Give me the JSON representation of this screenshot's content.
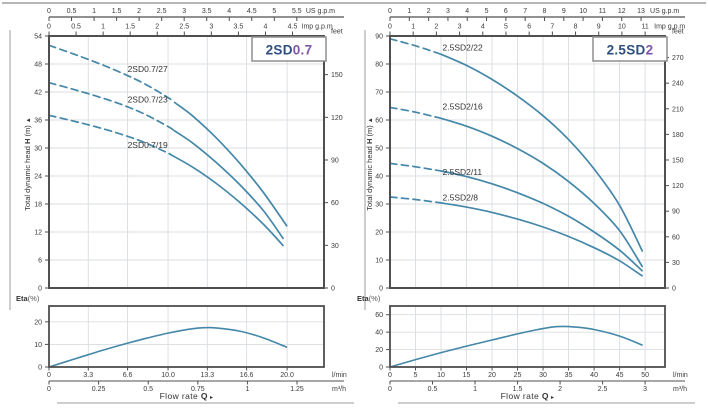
{
  "page": {
    "background": "#ffffff"
  },
  "shared": {
    "head_axis_label": {
      "prefix": "Total dynamic head ",
      "h": "H",
      "unit": " (m) ",
      "arrow": "▲"
    },
    "eta_axis_label": {
      "bold": "Eta",
      "unit": "(%)"
    },
    "flow_axis_label": {
      "text": "Flow  rate  ",
      "q": "Q",
      "arrow": " ▸"
    },
    "colors": {
      "curve": "#4487a9",
      "grid": "#d9dde1",
      "frame": "#4f4f4f",
      "text": "#333333",
      "axis_text": "#3a3a3a",
      "title_prefix": "#2f4f80",
      "title_suffix": "#7e57ab",
      "box_border": "#8f8f8f",
      "page_line": "#9e9e9e"
    }
  },
  "chart_data": [
    {
      "type": "line",
      "title": {
        "prefix": "2SD",
        "suffix": "0.7"
      },
      "x_max_lpm": 23.1,
      "head_max_m": 54,
      "head_ticks": [
        0,
        6,
        12,
        18,
        24,
        30,
        36,
        42,
        48,
        54
      ],
      "feet_axis": {
        "unit": "feet",
        "feet_per_m": 3.2808,
        "ticks": [
          0,
          30,
          60,
          90,
          120,
          150
        ]
      },
      "us_axis": {
        "unit": "US g.p.m",
        "lpm_per_unit": 3.785,
        "values": [
          0,
          0.5,
          1,
          1.5,
          2,
          2.5,
          3,
          3.5,
          4,
          4.5,
          5,
          5.5
        ],
        "labels": [
          "0",
          "0.5",
          "1",
          "1.5",
          "2",
          "2.5",
          "3",
          "3.5",
          "4",
          "4.5",
          "5",
          "5.5"
        ]
      },
      "imp_axis": {
        "unit": "Imp g.p.m",
        "lpm_per_unit": 4.546,
        "values": [
          0,
          0.5,
          1,
          1.5,
          2,
          2.5,
          3,
          3.5,
          4,
          4.5
        ],
        "labels": [
          "0",
          "0.5",
          "1",
          "1.5",
          "2",
          "2.5",
          "3",
          "3.5",
          "4",
          "4.5"
        ]
      },
      "lpm_axis": {
        "unit": "l/min",
        "values": [
          0,
          3.3,
          6.6,
          10,
          13.3,
          16.6,
          20
        ],
        "labels": [
          "0",
          "3.3",
          "6.6",
          "10.0",
          "13.3",
          "16.6",
          "20.0"
        ]
      },
      "m3h_axis": {
        "unit": "m³/h",
        "lpm_per_unit": 16.667,
        "values": [
          0,
          0.25,
          0.5,
          0.75,
          1,
          1.25
        ],
        "labels": [
          "0",
          "0.25",
          "0.5",
          "0.75",
          "1",
          "1.25"
        ]
      },
      "curves": [
        {
          "name": "2SD0.7/27",
          "dash_until_lpm": 10.5,
          "label_at": [
            6.6,
            46.3
          ],
          "points": [
            [
              0,
              52
            ],
            [
              2,
              50.2
            ],
            [
              4,
              48.3
            ],
            [
              6,
              46.2
            ],
            [
              8,
              43.8
            ],
            [
              10,
              40.8
            ],
            [
              12,
              37
            ],
            [
              14,
              32.3
            ],
            [
              16,
              26.8
            ],
            [
              18,
              20.5
            ],
            [
              20,
              13.2
            ]
          ]
        },
        {
          "name": "2SD0.7/23",
          "dash_until_lpm": 10.5,
          "label_at": [
            6.6,
            39.7
          ],
          "points": [
            [
              0,
              44
            ],
            [
              2,
              42.6
            ],
            [
              4,
              41.1
            ],
            [
              6,
              39.4
            ],
            [
              8,
              37.3
            ],
            [
              10,
              34.6
            ],
            [
              12,
              31.2
            ],
            [
              14,
              27
            ],
            [
              16,
              22.2
            ],
            [
              18,
              16.6
            ],
            [
              19.7,
              10.5
            ]
          ]
        },
        {
          "name": "2SD0.7/19",
          "dash_until_lpm": 10.2,
          "label_at": [
            6.6,
            30
          ],
          "points": [
            [
              0,
              37
            ],
            [
              2,
              35.8
            ],
            [
              4,
              34.5
            ],
            [
              6,
              33
            ],
            [
              8,
              31.2
            ],
            [
              10,
              28.9
            ],
            [
              12,
              26
            ],
            [
              14,
              22.5
            ],
            [
              16,
              18.4
            ],
            [
              18,
              13.7
            ],
            [
              19.7,
              9
            ]
          ]
        }
      ],
      "eta": {
        "y_max": 27,
        "ticks": [
          0,
          10,
          20
        ],
        "points": [
          [
            0,
            0
          ],
          [
            2,
            3.3
          ],
          [
            4,
            6.6
          ],
          [
            6,
            9.7
          ],
          [
            8,
            12.5
          ],
          [
            10,
            15
          ],
          [
            12,
            16.9
          ],
          [
            13,
            17.4
          ],
          [
            14,
            17.3
          ],
          [
            16,
            15.9
          ],
          [
            18,
            12.9
          ],
          [
            20,
            8.7
          ]
        ]
      }
    },
    {
      "type": "line",
      "title": {
        "prefix": "2.5SD",
        "suffix": "2"
      },
      "x_max_lpm": 53.9,
      "head_max_m": 90,
      "head_ticks": [
        0,
        10,
        20,
        30,
        40,
        50,
        60,
        70,
        80,
        90
      ],
      "feet_axis": {
        "unit": "feet",
        "feet_per_m": 3.2808,
        "ticks": [
          0,
          30,
          60,
          90,
          120,
          150,
          180,
          210,
          240,
          270
        ]
      },
      "us_axis": {
        "unit": "US g.p.m",
        "lpm_per_unit": 3.785,
        "values": [
          0,
          1,
          2,
          3,
          4,
          5,
          6,
          7,
          8,
          9,
          10,
          11,
          12,
          13
        ],
        "labels": [
          "0",
          "1",
          "2",
          "3",
          "4",
          "5",
          "6",
          "7",
          "8",
          "9",
          "10",
          "11",
          "12",
          "13"
        ]
      },
      "imp_axis": {
        "unit": "Imp g.p.m",
        "lpm_per_unit": 4.546,
        "values": [
          0,
          1,
          2,
          3,
          4,
          5,
          6,
          7,
          8,
          9,
          10,
          11
        ],
        "labels": [
          "0",
          "1",
          "2",
          "3",
          "4",
          "5",
          "6",
          "7",
          "8",
          "9",
          "10",
          "11"
        ]
      },
      "lpm_axis": {
        "unit": "l/min",
        "values": [
          0,
          5,
          10,
          15,
          20,
          25,
          30,
          35,
          40,
          45,
          50
        ],
        "labels": [
          "0",
          "5",
          "10",
          "15",
          "20",
          "25",
          "30",
          "35",
          "40",
          "45",
          "50"
        ]
      },
      "m3h_axis": {
        "unit": "m³/h",
        "lpm_per_unit": 16.667,
        "values": [
          0,
          0.5,
          1,
          1.5,
          2,
          2.5,
          3
        ],
        "labels": [
          "0",
          "0.5",
          "1",
          "1.5",
          "2",
          "2.5",
          "3"
        ]
      },
      "curves": [
        {
          "name": "2.5SD2/22",
          "dash_until_lpm": 10,
          "label_at": [
            10.3,
            84.8
          ],
          "points": [
            [
              0,
              89
            ],
            [
              5,
              86.5
            ],
            [
              10,
              83.5
            ],
            [
              15,
              79.5
            ],
            [
              20,
              74.5
            ],
            [
              25,
              68.5
            ],
            [
              30,
              61.5
            ],
            [
              35,
              53
            ],
            [
              40,
              42.5
            ],
            [
              45,
              29.5
            ],
            [
              49.5,
              13
            ]
          ]
        },
        {
          "name": "2.5SD2/16",
          "dash_until_lpm": 9.5,
          "label_at": [
            10.3,
            63.8
          ],
          "points": [
            [
              0,
              64.5
            ],
            [
              5,
              62.8
            ],
            [
              10,
              60.6
            ],
            [
              15,
              57.8
            ],
            [
              20,
              54.2
            ],
            [
              25,
              49.8
            ],
            [
              30,
              44.5
            ],
            [
              35,
              38
            ],
            [
              40,
              30.2
            ],
            [
              45,
              20.5
            ],
            [
              49.5,
              7.5
            ]
          ]
        },
        {
          "name": "2.5SD2/11",
          "dash_until_lpm": 9,
          "label_at": [
            10.3,
            40.4
          ],
          "points": [
            [
              0,
              44.5
            ],
            [
              5,
              43.3
            ],
            [
              10,
              41.8
            ],
            [
              15,
              39.8
            ],
            [
              20,
              37.2
            ],
            [
              25,
              34
            ],
            [
              30,
              30.2
            ],
            [
              35,
              25.6
            ],
            [
              40,
              20
            ],
            [
              45,
              13.5
            ],
            [
              49.5,
              6
            ]
          ]
        },
        {
          "name": "2.5SD2/8",
          "dash_until_lpm": 9,
          "label_at": [
            10.3,
            31.2
          ],
          "points": [
            [
              0,
              32.5
            ],
            [
              5,
              31.6
            ],
            [
              10,
              30.4
            ],
            [
              15,
              28.9
            ],
            [
              20,
              27
            ],
            [
              25,
              24.6
            ],
            [
              30,
              21.8
            ],
            [
              35,
              18.4
            ],
            [
              40,
              14.4
            ],
            [
              45,
              9.7
            ],
            [
              49.5,
              4.2
            ]
          ]
        }
      ],
      "eta": {
        "y_max": 70,
        "ticks": [
          0,
          20,
          40,
          60
        ],
        "points": [
          [
            0,
            0
          ],
          [
            5,
            8.5
          ],
          [
            10,
            16.5
          ],
          [
            15,
            24
          ],
          [
            20,
            31
          ],
          [
            25,
            38
          ],
          [
            29,
            43
          ],
          [
            32,
            46
          ],
          [
            34,
            46.6
          ],
          [
            36,
            46
          ],
          [
            40,
            43
          ],
          [
            45,
            35.5
          ],
          [
            49.5,
            25
          ]
        ]
      }
    }
  ]
}
